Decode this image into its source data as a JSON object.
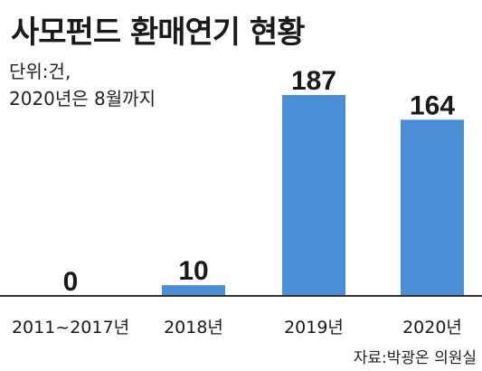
{
  "title": "사모펀드 환매연기 현황",
  "unit_note": [
    "단위:건,",
    "2020년은 8월까지"
  ],
  "source": "자료:박광온 의원실",
  "colors": {
    "bar": "#4a8fd6",
    "axis": "#333333",
    "text": "#1a1a1a"
  },
  "chart_data": {
    "type": "bar",
    "categories": [
      "2011~2017년",
      "2018년",
      "2019년",
      "2020년"
    ],
    "values": [
      0,
      10,
      187,
      164
    ],
    "ylim": [
      0,
      187
    ]
  }
}
